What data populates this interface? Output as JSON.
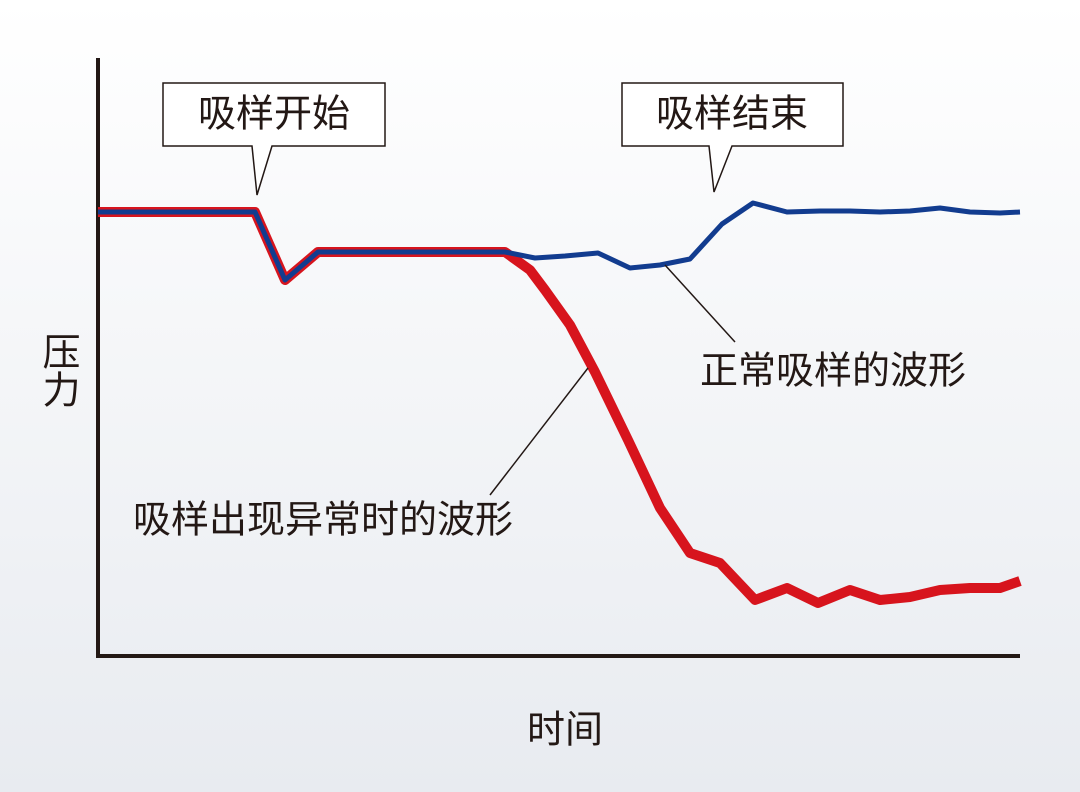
{
  "y_axis_label": "压力",
  "x_axis_label": "时间",
  "callouts": {
    "start": "吸样开始",
    "end": "吸样结束"
  },
  "curves": {
    "normal": "正常吸样的波形",
    "abnormal": "吸样出现异常时的波形"
  }
}
